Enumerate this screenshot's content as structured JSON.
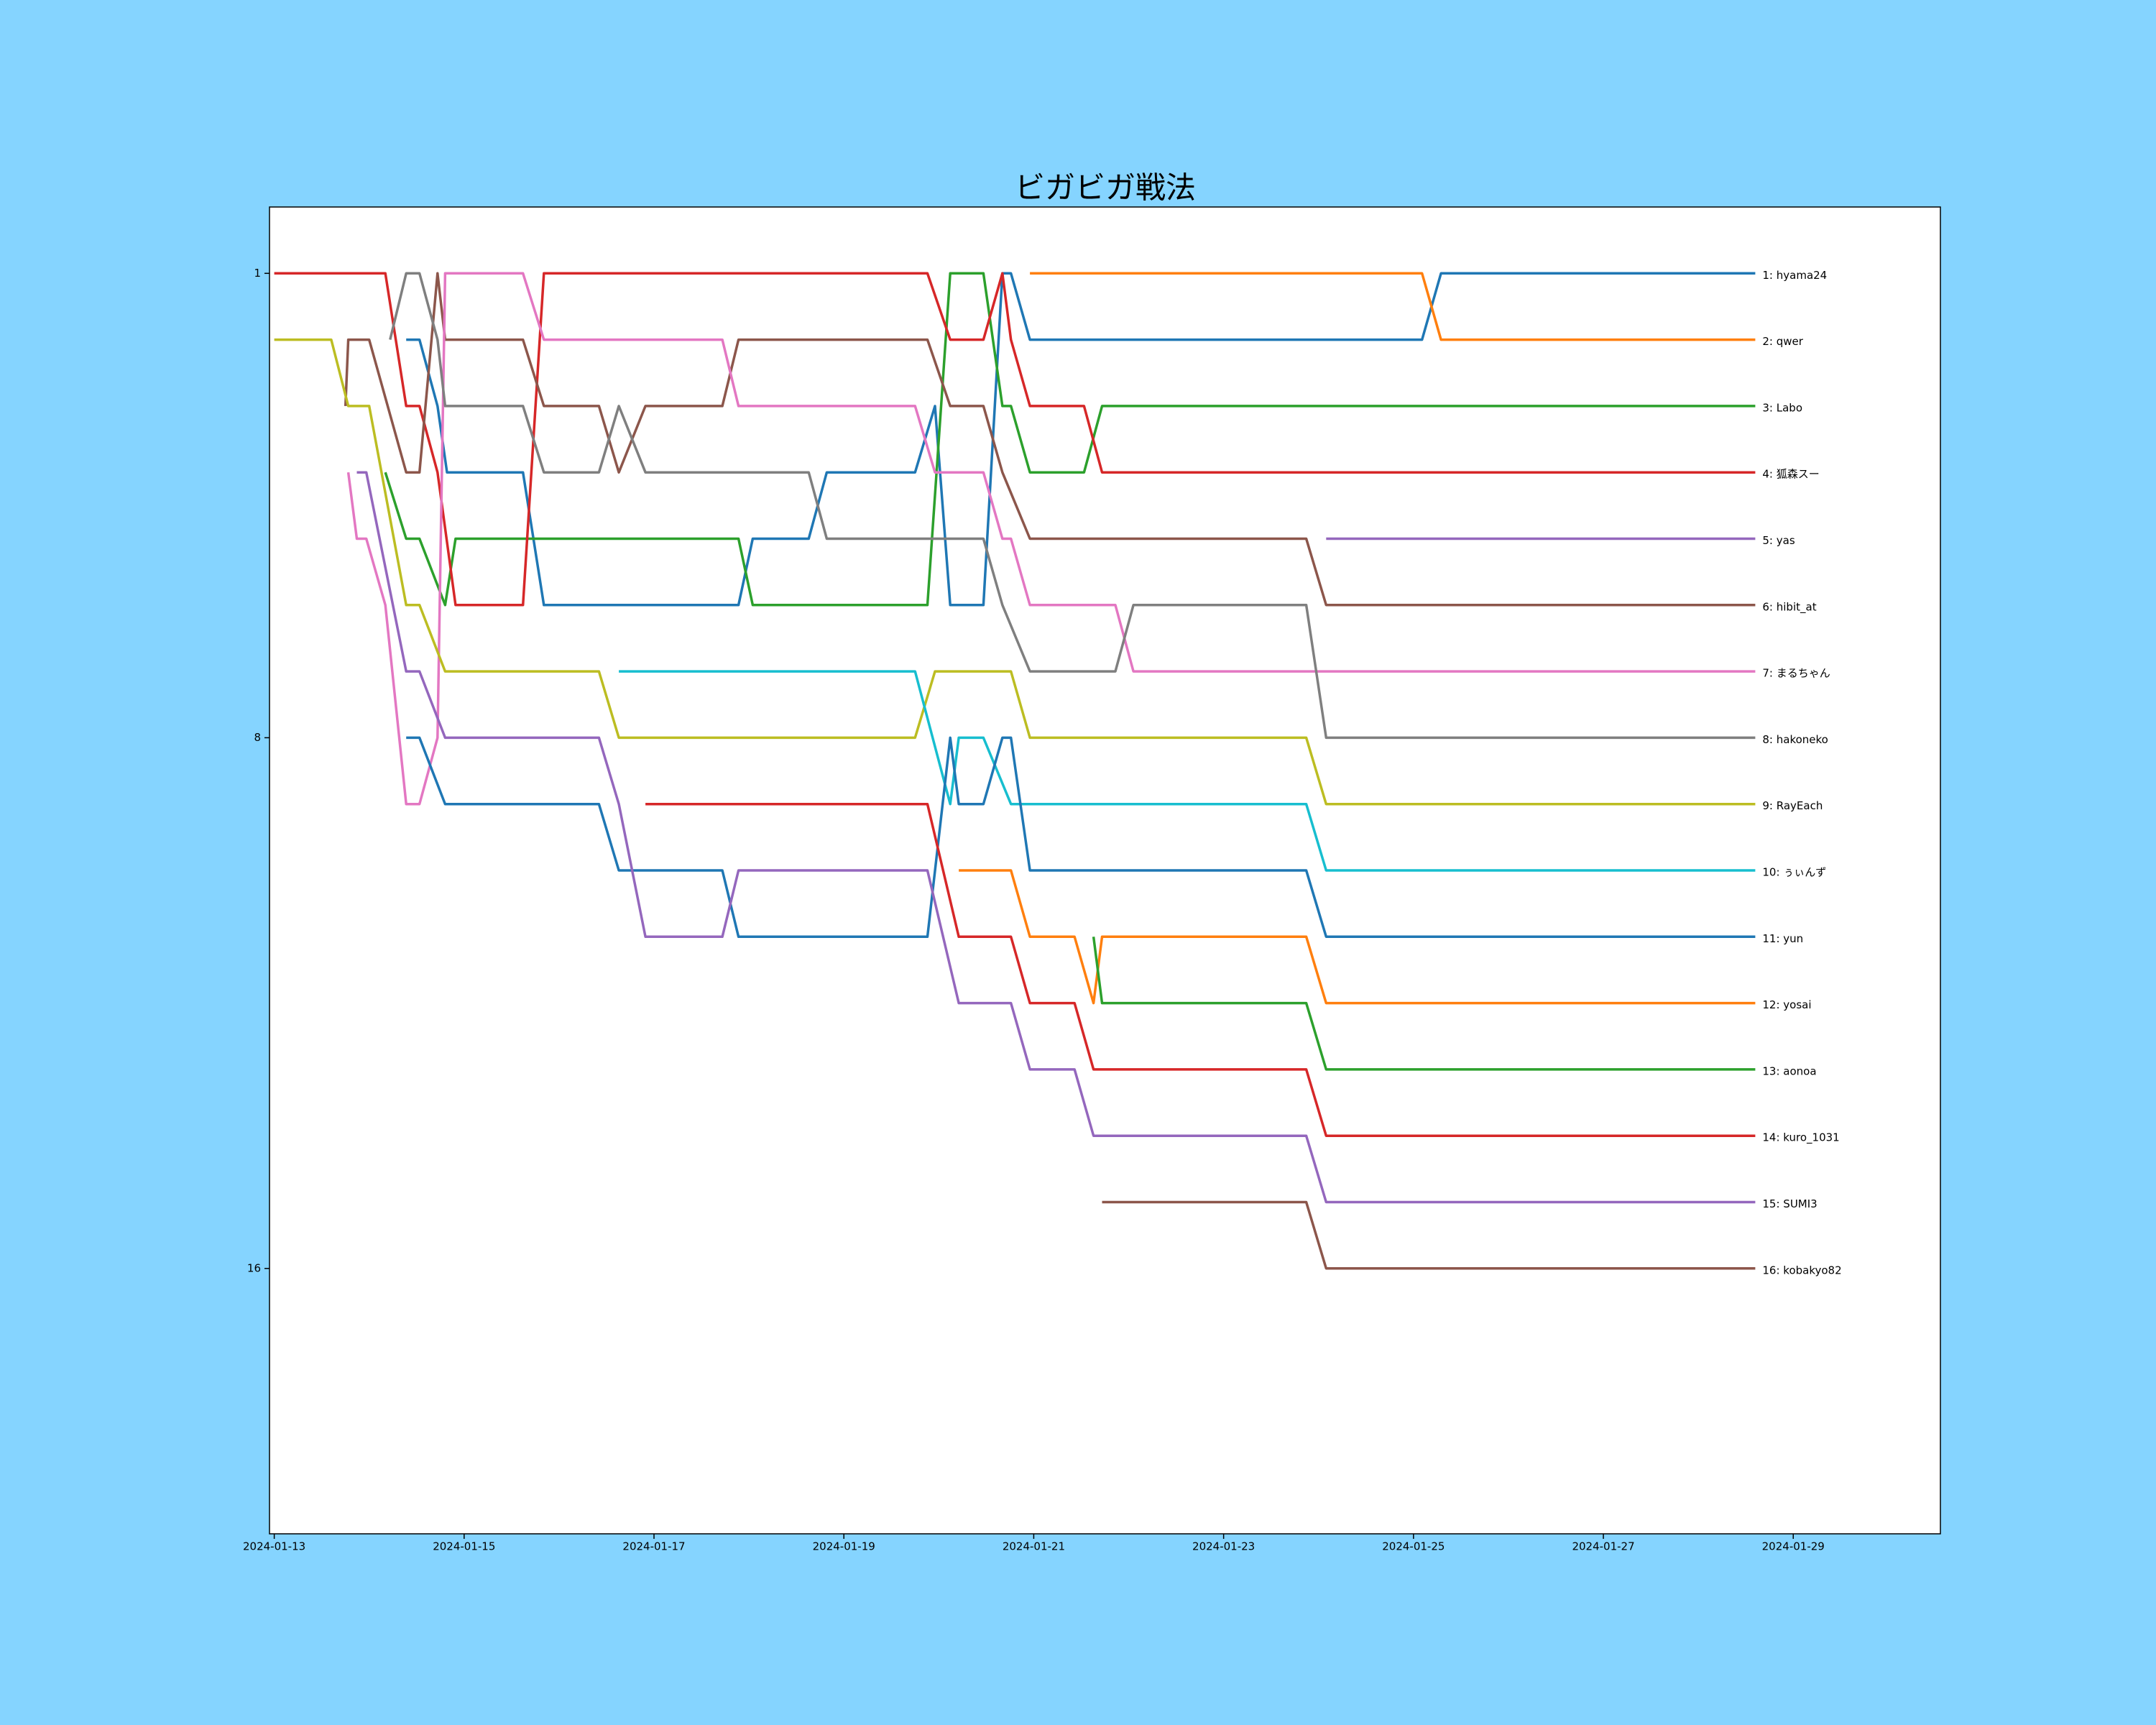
{
  "chart_data": {
    "type": "line",
    "title": "ビガビガ戦法",
    "xlim": [
      -0.05,
      17.55
    ],
    "xticks": [
      {
        "value": 0,
        "label": "2024-01-13"
      },
      {
        "value": 2,
        "label": "2024-01-15"
      },
      {
        "value": 4,
        "label": "2024-01-17"
      },
      {
        "value": 6,
        "label": "2024-01-19"
      },
      {
        "value": 8,
        "label": "2024-01-21"
      },
      {
        "value": 10,
        "label": "2024-01-23"
      },
      {
        "value": 12,
        "label": "2024-01-25"
      },
      {
        "value": 14,
        "label": "2024-01-27"
      },
      {
        "value": 16,
        "label": "2024-01-29"
      }
    ],
    "ylim": [
      0,
      20
    ],
    "y_inverted": true,
    "yticks": [
      1,
      8,
      16
    ],
    "series": [
      {
        "name": "1: hyama24",
        "color": "#1f77b4",
        "x": [
          1.39,
          1.53,
          1.72,
          1.82,
          2.62,
          2.84,
          4.89,
          5.04,
          5.63,
          5.82,
          6.75,
          6.96,
          7.12,
          7.47,
          7.67,
          7.76,
          7.96,
          12.09,
          12.29,
          15.6
        ],
        "values": [
          2,
          2,
          3,
          4,
          4,
          6,
          6,
          5,
          5,
          4,
          4,
          3,
          6,
          6,
          1,
          1,
          2,
          2,
          1,
          1
        ]
      },
      {
        "name": "2: qwer",
        "color": "#ff7f0e",
        "x": [
          7.96,
          12.09,
          12.29,
          15.6
        ],
        "values": [
          1,
          1,
          2,
          2
        ]
      },
      {
        "name": "3: Labo",
        "color": "#2ca02c",
        "x": [
          1.17,
          1.39,
          1.53,
          1.8,
          1.91,
          4.72,
          4.89,
          5.04,
          6.88,
          7.12,
          7.47,
          7.67,
          7.76,
          7.96,
          8.53,
          8.72,
          15.6
        ],
        "values": [
          4,
          5,
          5,
          6,
          5,
          5,
          5,
          6,
          6,
          1,
          1,
          3,
          3,
          4,
          4,
          3,
          3
        ]
      },
      {
        "name": "4: 狐森スー",
        "color": "#d62728",
        "x": [
          0,
          1.17,
          1.39,
          1.53,
          1.72,
          1.91,
          2.62,
          2.84,
          6.88,
          7.12,
          7.47,
          7.67,
          7.76,
          7.96,
          8.53,
          8.72,
          15.6
        ],
        "values": [
          1,
          1,
          3,
          3,
          4,
          6,
          6,
          1,
          1,
          2,
          2,
          1,
          2,
          3,
          3,
          4,
          4
        ]
      },
      {
        "name": "5: yas",
        "color": "#9467bd",
        "x": [
          11.08,
          15.6
        ],
        "values": [
          5,
          5
        ]
      },
      {
        "name": "6: hibit_at",
        "color": "#8c564b",
        "x": [
          0.75,
          0.78,
          1.0,
          1.39,
          1.53,
          1.72,
          1.8,
          2.62,
          2.84,
          3.42,
          3.63,
          3.91,
          4.72,
          4.89,
          6.88,
          7.12,
          7.47,
          7.67,
          7.96,
          10.87,
          11.08,
          15.6
        ],
        "values": [
          3,
          2,
          2,
          4,
          4,
          1,
          2,
          2,
          3,
          3,
          4,
          3,
          3,
          2,
          2,
          3,
          3,
          4,
          5,
          5,
          6,
          6
        ]
      },
      {
        "name": "7: まるちゃん",
        "color": "#e377c2",
        "x": [
          0.78,
          0.87,
          0.97,
          1.17,
          1.39,
          1.53,
          1.72,
          1.8,
          2.62,
          2.84,
          4.72,
          4.89,
          6.75,
          6.96,
          7.47,
          7.67,
          7.76,
          7.96,
          8.86,
          9.05,
          15.6
        ],
        "values": [
          4,
          5,
          5,
          6,
          9,
          9,
          8,
          1,
          1,
          2,
          2,
          3,
          3,
          4,
          4,
          5,
          5,
          6,
          6,
          7,
          7
        ]
      },
      {
        "name": "8: hakoneko",
        "color": "#7f7f7f",
        "x": [
          1.22,
          1.39,
          1.53,
          1.72,
          1.8,
          2.62,
          2.84,
          3.42,
          3.63,
          3.91,
          5.63,
          5.82,
          7.47,
          7.67,
          7.96,
          8.86,
          9.05,
          10.87,
          11.08,
          15.6
        ],
        "values": [
          2,
          1,
          1,
          2,
          3,
          3,
          4,
          4,
          3,
          4,
          4,
          5,
          5,
          6,
          7,
          7,
          6,
          6,
          8,
          8
        ]
      },
      {
        "name": "9: RayEach",
        "color": "#bcbd22",
        "x": [
          0,
          0.6,
          0.78,
          1.0,
          1.39,
          1.53,
          1.8,
          3.42,
          3.63,
          6.75,
          6.96,
          7.76,
          7.96,
          10.87,
          11.08,
          15.6
        ],
        "values": [
          2,
          2,
          3,
          3,
          6,
          6,
          7,
          7,
          8,
          8,
          7,
          7,
          8,
          8,
          9,
          9
        ]
      },
      {
        "name": "10: ぅぃんず",
        "color": "#17becf",
        "x": [
          3.63,
          6.75,
          7.12,
          7.21,
          7.47,
          7.76,
          10.87,
          11.08,
          15.6
        ],
        "values": [
          7,
          7,
          9,
          8,
          8,
          9,
          9,
          10,
          10
        ]
      },
      {
        "name": "11: yun",
        "color": "#1f77b4",
        "x": [
          1.39,
          1.53,
          1.8,
          3.42,
          3.63,
          4.72,
          4.89,
          6.88,
          7.12,
          7.21,
          7.47,
          7.67,
          7.76,
          7.96,
          10.87,
          11.08,
          15.6
        ],
        "values": [
          8,
          8,
          9,
          9,
          10,
          10,
          11,
          11,
          8,
          9,
          9,
          8,
          8,
          10,
          10,
          11,
          11
        ]
      },
      {
        "name": "12: yosai",
        "color": "#ff7f0e",
        "x": [
          7.21,
          7.76,
          7.96,
          8.43,
          8.63,
          8.72,
          10.87,
          11.08,
          15.6
        ],
        "values": [
          10,
          10,
          11,
          11,
          12,
          11,
          11,
          12,
          12
        ]
      },
      {
        "name": "13: aonoa",
        "color": "#2ca02c",
        "x": [
          8.63,
          8.72,
          10.87,
          11.08,
          15.6
        ],
        "values": [
          11,
          12,
          12,
          13,
          13
        ]
      },
      {
        "name": "14: kuro_1031",
        "color": "#d62728",
        "x": [
          3.91,
          6.88,
          7.21,
          7.76,
          7.96,
          8.43,
          8.63,
          10.87,
          11.08,
          15.6
        ],
        "values": [
          9,
          9,
          11,
          11,
          12,
          12,
          13,
          13,
          14,
          14
        ]
      },
      {
        "name": "15: SUMI3",
        "color": "#9467bd",
        "x": [
          0.87,
          0.97,
          1.39,
          1.53,
          1.8,
          3.42,
          3.63,
          3.91,
          4.72,
          4.89,
          6.88,
          7.21,
          7.76,
          7.96,
          8.43,
          8.63,
          10.87,
          11.08,
          15.6
        ],
        "values": [
          4,
          4,
          7,
          7,
          8,
          8,
          9,
          11,
          11,
          10,
          10,
          12,
          12,
          13,
          13,
          14,
          14,
          15,
          15
        ]
      },
      {
        "name": "16: kobakyo82",
        "color": "#8c564b",
        "x": [
          8.72,
          10.87,
          11.08,
          15.6
        ],
        "values": [
          15,
          15,
          16,
          16
        ]
      }
    ]
  }
}
